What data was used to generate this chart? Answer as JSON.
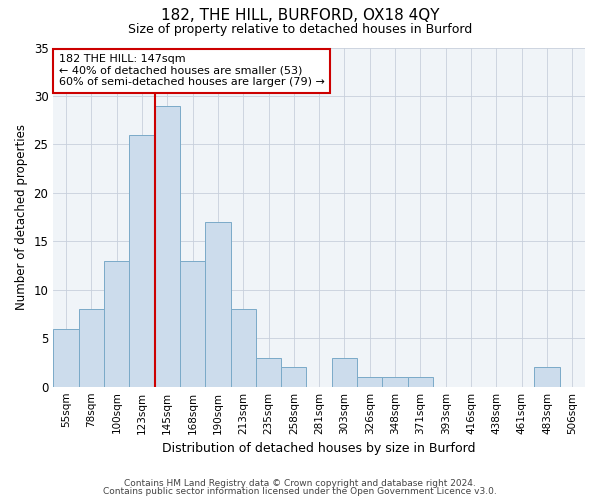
{
  "title1": "182, THE HILL, BURFORD, OX18 4QY",
  "title2": "Size of property relative to detached houses in Burford",
  "xlabel": "Distribution of detached houses by size in Burford",
  "ylabel": "Number of detached properties",
  "categories": [
    "55sqm",
    "78sqm",
    "100sqm",
    "123sqm",
    "145sqm",
    "168sqm",
    "190sqm",
    "213sqm",
    "235sqm",
    "258sqm",
    "281sqm",
    "303sqm",
    "326sqm",
    "348sqm",
    "371sqm",
    "393sqm",
    "416sqm",
    "438sqm",
    "461sqm",
    "483sqm",
    "506sqm"
  ],
  "values": [
    6,
    8,
    13,
    26,
    29,
    13,
    17,
    8,
    3,
    2,
    0,
    3,
    1,
    1,
    1,
    0,
    0,
    0,
    0,
    2,
    0
  ],
  "bar_color": "#ccdcec",
  "bar_edge_color": "#7aaac8",
  "vline_x_index": 4,
  "vline_color": "#cc0000",
  "annotation_line1": "182 THE HILL: 147sqm",
  "annotation_line2": "← 40% of detached houses are smaller (53)",
  "annotation_line3": "60% of semi-detached houses are larger (79) →",
  "annotation_box_color": "white",
  "annotation_box_edge_color": "#cc0000",
  "ylim": [
    0,
    35
  ],
  "yticks": [
    0,
    5,
    10,
    15,
    20,
    25,
    30,
    35
  ],
  "footer1": "Contains HM Land Registry data © Crown copyright and database right 2024.",
  "footer2": "Contains public sector information licensed under the Open Government Licence v3.0.",
  "bg_color": "#ffffff",
  "plot_bg_color": "#f0f4f8",
  "grid_color": "#c8d0dc"
}
